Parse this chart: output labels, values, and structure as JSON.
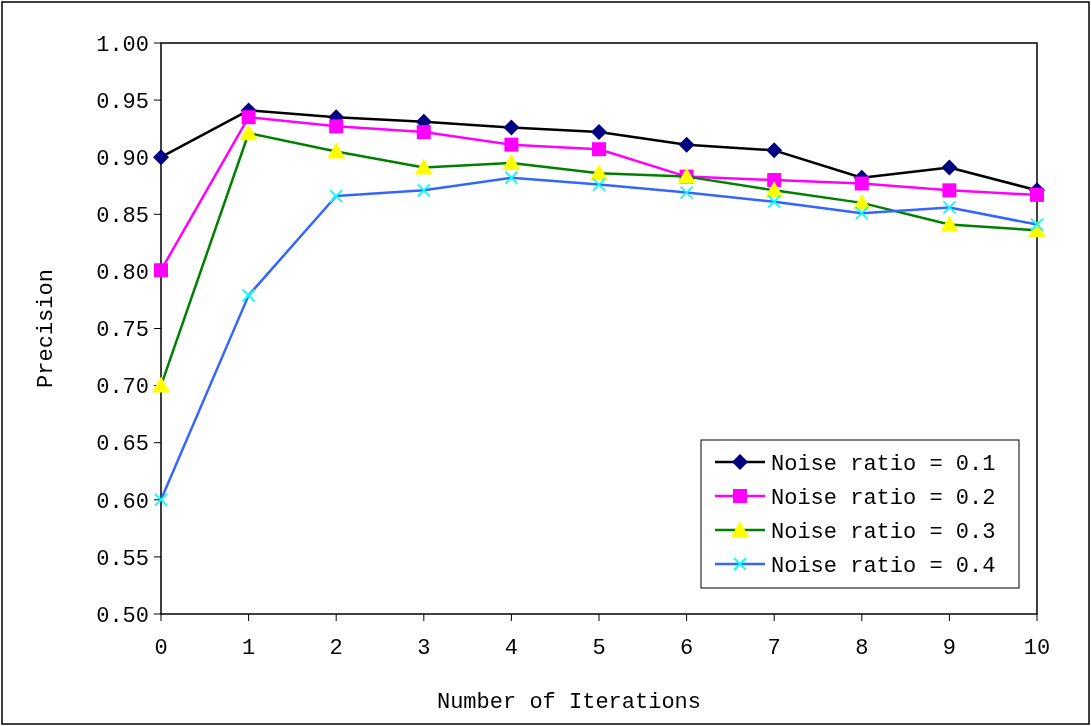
{
  "chart_data": {
    "type": "line",
    "xlabel": "Number of Iterations",
    "ylabel": "Precision",
    "x": [
      0,
      1,
      2,
      3,
      4,
      5,
      6,
      7,
      8,
      9,
      10
    ],
    "xlim": [
      0,
      10
    ],
    "xticks": [
      0,
      1,
      2,
      3,
      4,
      5,
      6,
      7,
      8,
      9,
      10
    ],
    "ylim": [
      0.5,
      1.0
    ],
    "yticks": [
      {
        "value": 0.5,
        "label": "0.50"
      },
      {
        "value": 0.55,
        "label": "0.55"
      },
      {
        "value": 0.6,
        "label": "0.60"
      },
      {
        "value": 0.65,
        "label": "0.65"
      },
      {
        "value": 0.7,
        "label": "0.70"
      },
      {
        "value": 0.75,
        "label": "0.75"
      },
      {
        "value": 0.8,
        "label": "0.80"
      },
      {
        "value": 0.85,
        "label": "0.85"
      },
      {
        "value": 0.9,
        "label": "0.90"
      },
      {
        "value": 0.95,
        "label": "0.95"
      },
      {
        "value": 1.0,
        "label": "1.00"
      }
    ],
    "grid": false,
    "legend": "bottom right",
    "series": [
      {
        "name": "Noise ratio = 0.1",
        "color": "#000000",
        "marker": "diamond",
        "colors": [
          "#000080",
          "#000080",
          "#000080",
          "#000080",
          "#000080",
          "#000080",
          "#000080",
          "#000080",
          "#000080",
          "#000080",
          "#000080"
        ],
        "values": [
          0.9,
          0.941,
          0.935,
          0.931,
          0.926,
          0.922,
          0.911,
          0.906,
          0.882,
          0.891,
          0.871
        ]
      },
      {
        "name": "Noise ratio = 0.2",
        "color": "#ff00ff",
        "marker": "square",
        "values": [
          0.801,
          0.935,
          0.927,
          0.922,
          0.911,
          0.907,
          0.883,
          0.88,
          0.877,
          0.871,
          0.867
        ]
      },
      {
        "name": "Noise ratio = 0.3",
        "color": "#008000",
        "marker": "triangle",
        "colors": [
          "#ffff00",
          "#ffff00",
          "#ffff00",
          "#ffff00",
          "#ffff00",
          "#ffff00",
          "#ffff00",
          "#ffff00",
          "#ffff00",
          "#ffff00",
          "#ffff00"
        ],
        "values": [
          0.7,
          0.921,
          0.905,
          0.891,
          0.895,
          0.886,
          0.883,
          0.871,
          0.86,
          0.841,
          0.836
        ]
      },
      {
        "name": "Noise ratio = 0.4",
        "color": "#3366ff",
        "marker": "cross",
        "colors": [
          "#00ffff",
          "#00ffff",
          "#00ffff",
          "#00ffff",
          "#00ffff",
          "#00ffff",
          "#00ffff",
          "#00ffff",
          "#00ffff",
          "#00ffff",
          "#00ffff"
        ],
        "values": [
          0.6,
          0.779,
          0.866,
          0.871,
          0.882,
          0.876,
          0.869,
          0.861,
          0.851,
          0.856,
          0.841
        ]
      }
    ]
  }
}
